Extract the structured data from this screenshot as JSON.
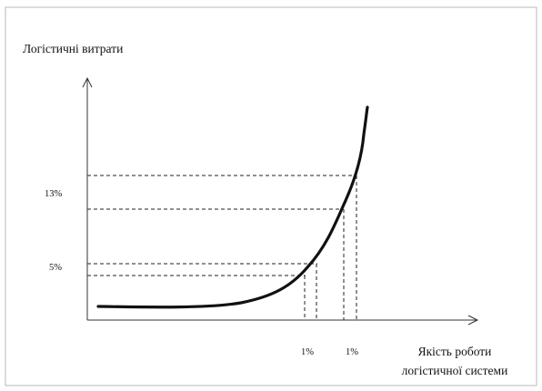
{
  "chart_data": {
    "type": "line",
    "ylabel": "Логістичні витрати",
    "xlabel_lines": [
      "Якість роботи",
      "логістичної системи"
    ],
    "y_tick_labels": [
      "13%",
      "5%"
    ],
    "x_tick_labels": [
      "1%",
      "1%"
    ],
    "grid": false,
    "legend": "none",
    "colors": {
      "curve": "#111111",
      "guides": "#222222",
      "axes": "#333333"
    }
  }
}
